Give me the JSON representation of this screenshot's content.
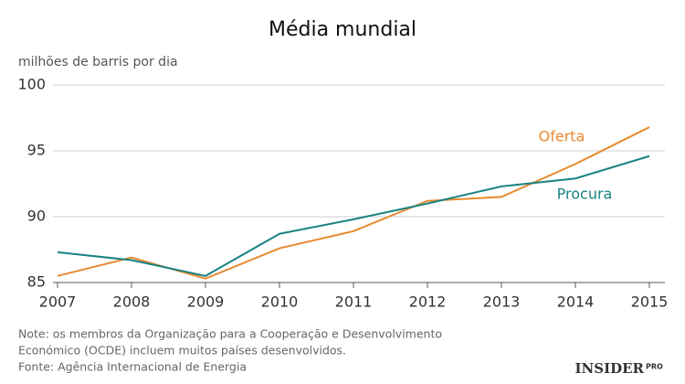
{
  "chart_data": {
    "type": "line",
    "title": "Média mundial",
    "y_label": "milhões de barris por dia",
    "categories": [
      "2007",
      "2008",
      "2009",
      "2010",
      "2011",
      "2012",
      "2013",
      "2014",
      "2015"
    ],
    "series": [
      {
        "name": "Oferta",
        "color": "#e8892e",
        "values": [
          85.5,
          86.9,
          85.3,
          87.6,
          88.9,
          91.2,
          91.5,
          94.0,
          96.8
        ]
      },
      {
        "name": "Procura",
        "color": "#1a8282",
        "values": [
          87.3,
          86.7,
          85.5,
          88.7,
          89.8,
          91.0,
          92.3,
          92.9,
          94.6
        ]
      }
    ],
    "ylim": [
      85,
      100
    ],
    "yticks": [
      85,
      90,
      95,
      100
    ],
    "grid": true,
    "notes": [
      "Note: os membros da Organização para a Cooperação e Desenvolvimento",
      "Económico (OCDE) incluem muitos países desenvolvidos."
    ],
    "source": "Fonte: Agência Internacional de Energia",
    "logo": [
      "INSIDER",
      "PRO"
    ]
  }
}
